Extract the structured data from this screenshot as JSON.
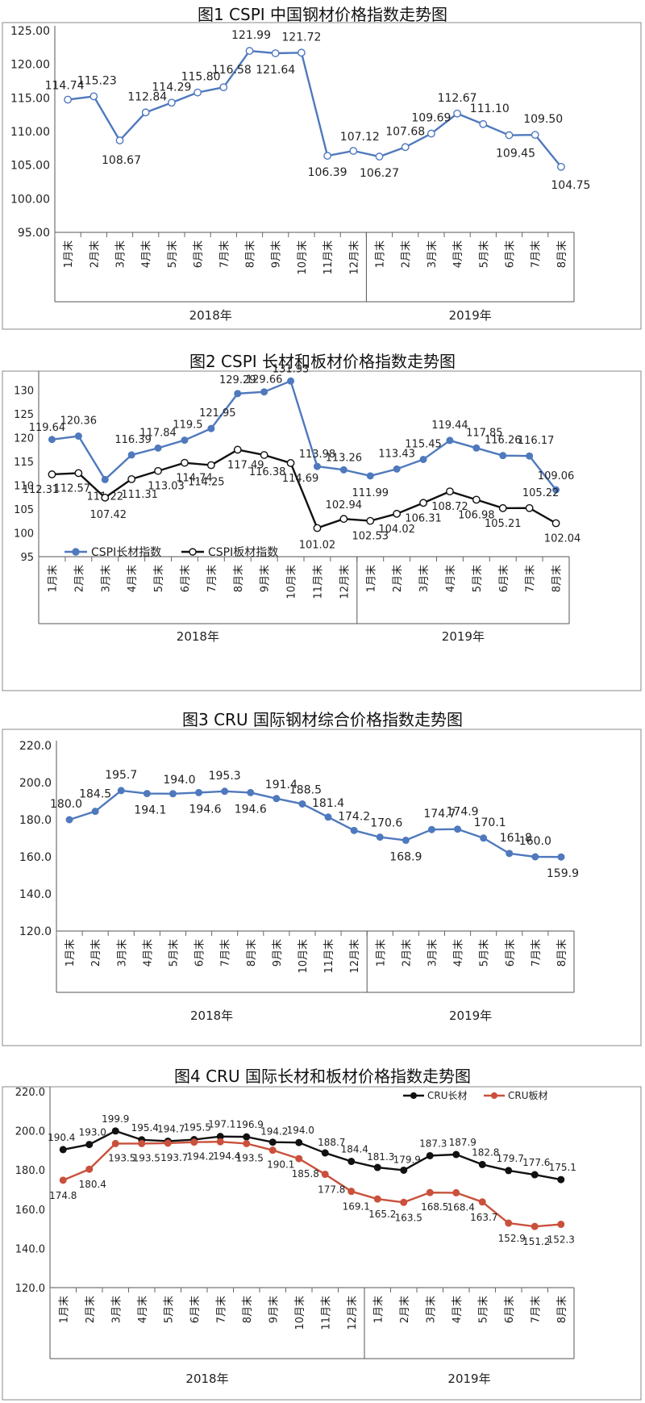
{
  "chart_data": [
    {
      "type": "line",
      "title": "图1  CSPI 中国钢材价格指数走势图",
      "categories": [
        "1月末",
        "2月末",
        "3月末",
        "4月末",
        "5月末",
        "6月末",
        "7月末",
        "8月末",
        "9月末",
        "10月末",
        "11月末",
        "12月末",
        "1月末",
        "2月末",
        "3月末",
        "4月末",
        "5月末",
        "6月末",
        "7月末",
        "8月末"
      ],
      "year_groups": [
        {
          "label": "2018年",
          "count": 12
        },
        {
          "label": "2019年",
          "count": 8
        }
      ],
      "ylim": [
        95,
        125
      ],
      "yticks": [
        95,
        100,
        105,
        110,
        115,
        120,
        125
      ],
      "ytick_labels": [
        "95.00",
        "100.00",
        "105.00",
        "110.00",
        "115.00",
        "120.00",
        "125.00"
      ],
      "legend": null,
      "series": [
        {
          "name": "",
          "color": "#4f79bd",
          "marker": "hollow",
          "values": [
            114.74,
            115.23,
            108.67,
            112.84,
            114.29,
            115.8,
            116.58,
            121.99,
            121.64,
            121.72,
            106.39,
            107.12,
            106.27,
            107.68,
            109.69,
            112.67,
            111.1,
            109.45,
            109.5,
            104.75
          ],
          "labels": [
            "114.74",
            "115.23",
            "108.67",
            "112.84",
            "114.29",
            "115.80",
            "116.58",
            "121.99",
            "121.64",
            "121.72",
            "106.39",
            "107.12",
            "106.27",
            "107.68",
            "109.69",
            "112.67",
            "111.10",
            "109.45",
            "109.50",
            "104.75"
          ]
        }
      ]
    },
    {
      "type": "line",
      "title": "图2  CSPI 长材和板材价格指数走势图",
      "categories": [
        "1月末",
        "2月末",
        "3月末",
        "4月末",
        "5月末",
        "6月末",
        "7月末",
        "8月末",
        "9月末",
        "10月末",
        "11月末",
        "12月末",
        "1月末",
        "2月末",
        "3月末",
        "4月末",
        "5月末",
        "6月末",
        "7月末",
        "8月末"
      ],
      "year_groups": [
        {
          "label": "2018年",
          "count": 12
        },
        {
          "label": "2019年",
          "count": 8
        }
      ],
      "ylim": [
        95,
        133
      ],
      "yticks": [
        95,
        100,
        105,
        110,
        115,
        120,
        125,
        130
      ],
      "ytick_labels": [
        "95",
        "100",
        "105",
        "110",
        "115",
        "120",
        "125",
        "130"
      ],
      "legend": "bottom-left",
      "series": [
        {
          "name": "CSPI长材指数",
          "color": "#4f79bd",
          "marker": "filled",
          "values": [
            119.64,
            120.36,
            111.22,
            116.39,
            117.84,
            119.5,
            121.95,
            129.29,
            129.66,
            131.93,
            113.98,
            113.26,
            111.99,
            113.43,
            115.45,
            119.44,
            117.85,
            116.26,
            116.17,
            109.06
          ],
          "labels": [
            "119.64",
            "120.36",
            "111.22",
            "116.39",
            "117.84",
            "119.5",
            "121.95",
            "129.29",
            "129.66",
            "131.93",
            "113.98",
            "113.26",
            "111.99",
            "113.43",
            "115.45",
            "119.44",
            "117.85",
            "116.26",
            "116.17",
            "109.06"
          ]
        },
        {
          "name": "CSPI板材指数",
          "color": "#111111",
          "marker": "hollow",
          "values": [
            112.31,
            112.57,
            107.42,
            111.31,
            113.03,
            114.74,
            114.25,
            117.49,
            116.38,
            114.69,
            101.02,
            102.94,
            102.53,
            104.02,
            106.31,
            108.72,
            106.98,
            105.21,
            105.22,
            102.04
          ],
          "labels": [
            "112.31",
            "112.57",
            "107.42",
            "111.31",
            "113.03",
            "114.74",
            "114.25",
            "117.49",
            "116.38",
            "114.69",
            "101.02",
            "102.94",
            "102.53",
            "104.02",
            "106.31",
            "108.72",
            "106.98",
            "105.21",
            "105.22",
            "102.04"
          ]
        }
      ]
    },
    {
      "type": "line",
      "title": "图3  CRU 国际钢材综合价格指数走势图",
      "categories": [
        "1月末",
        "2月末",
        "3月末",
        "4月末",
        "5月末",
        "6月末",
        "7月末",
        "8月末",
        "9月末",
        "10月末",
        "11月末",
        "12月末",
        "1月末",
        "2月末",
        "3月末",
        "4月末",
        "5月末",
        "6月末",
        "7月末",
        "8月末"
      ],
      "year_groups": [
        {
          "label": "2018年",
          "count": 12
        },
        {
          "label": "2019年",
          "count": 8
        }
      ],
      "ylim": [
        120,
        220
      ],
      "yticks": [
        120,
        140,
        160,
        180,
        200,
        220
      ],
      "ytick_labels": [
        "120.0",
        "140.0",
        "160.0",
        "180.0",
        "200.0",
        "220.0"
      ],
      "legend": null,
      "series": [
        {
          "name": "",
          "color": "#4f79bd",
          "marker": "filled",
          "values": [
            180.0,
            184.5,
            195.7,
            194.1,
            194.0,
            194.6,
            195.3,
            194.6,
            191.4,
            188.5,
            181.4,
            174.2,
            170.6,
            168.9,
            174.7,
            174.9,
            170.1,
            161.8,
            160.0,
            159.9
          ],
          "labels": [
            "180.0",
            "184.5",
            "195.7",
            "194.1",
            "194.0",
            "194.6",
            "195.3",
            "194.6",
            "191.4",
            "188.5",
            "181.4",
            "174.2",
            "170.6",
            "168.9",
            "174.7",
            "174.9",
            "170.1",
            "161.8",
            "160.0",
            "159.9"
          ]
        }
      ]
    },
    {
      "type": "line",
      "title": "图4  CRU 国际长材和板材价格指数走势图",
      "categories": [
        "1月末",
        "2月末",
        "3月末",
        "4月末",
        "5月末",
        "6月末",
        "7月末",
        "8月末",
        "9月末",
        "10月末",
        "11月末",
        "12月末",
        "1月末",
        "2月末",
        "3月末",
        "4月末",
        "5月末",
        "6月末",
        "7月末",
        "8月末"
      ],
      "year_groups": [
        {
          "label": "2018年",
          "count": 12
        },
        {
          "label": "2019年",
          "count": 8
        }
      ],
      "ylim": [
        120,
        220
      ],
      "yticks": [
        120,
        140,
        160,
        180,
        200,
        220
      ],
      "ytick_labels": [
        "120.0",
        "140.0",
        "160.0",
        "180.0",
        "200.0",
        "220.0"
      ],
      "legend": "top-right",
      "series": [
        {
          "name": "CRU长材",
          "color": "#111111",
          "marker": "filled",
          "values": [
            190.4,
            193.0,
            199.9,
            195.4,
            194.7,
            195.5,
            197.1,
            196.9,
            194.2,
            194.0,
            188.7,
            184.4,
            181.3,
            179.9,
            187.3,
            187.9,
            182.8,
            179.7,
            177.6,
            175.1
          ],
          "labels": [
            "190.4",
            "193.0",
            "199.9",
            "195.4",
            "194.7",
            "195.5",
            "197.1",
            "196.9",
            "194.2",
            "194.0",
            "188.7",
            "184.4",
            "181.3",
            "179.9",
            "187.3",
            "187.9",
            "182.8",
            "179.7",
            "177.6",
            "175.1"
          ]
        },
        {
          "name": "CRU板材",
          "color": "#c9513c",
          "marker": "filled",
          "values": [
            174.8,
            180.4,
            193.5,
            193.5,
            193.7,
            194.2,
            194.4,
            193.5,
            190.1,
            185.8,
            177.8,
            169.1,
            165.2,
            163.5,
            168.5,
            168.4,
            163.7,
            152.9,
            151.2,
            152.3
          ],
          "labels": [
            "174.8",
            "180.4",
            "193.5",
            "193.5",
            "193.7",
            "194.2",
            "194.4",
            "193.5",
            "190.1",
            "185.8",
            "177.8",
            "169.1",
            "165.2",
            "163.5",
            "168.5",
            "168.4",
            "163.7",
            "152.9",
            "151.2",
            "152.3"
          ]
        }
      ]
    }
  ]
}
